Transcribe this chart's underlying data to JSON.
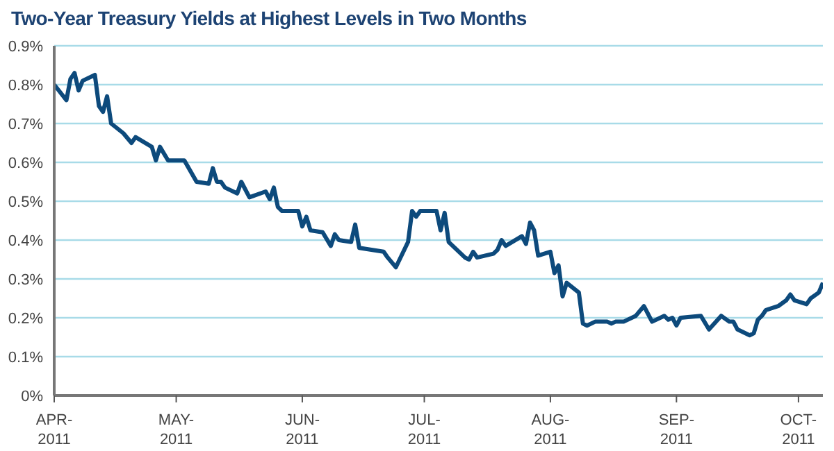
{
  "chart_data": {
    "type": "line",
    "title": "Two-Year Treasury Yields at Highest Levels in Two Months",
    "x": [
      "2011-04-01",
      "2011-04-04",
      "2011-04-05",
      "2011-04-06",
      "2011-04-07",
      "2011-04-08",
      "2011-04-11",
      "2011-04-12",
      "2011-04-13",
      "2011-04-14",
      "2011-04-15",
      "2011-04-18",
      "2011-04-20",
      "2011-04-21",
      "2011-04-25",
      "2011-04-26",
      "2011-04-27",
      "2011-04-29",
      "2011-05-03",
      "2011-05-06",
      "2011-05-09",
      "2011-05-10",
      "2011-05-11",
      "2011-05-12",
      "2011-05-13",
      "2011-05-16",
      "2011-05-17",
      "2011-05-19",
      "2011-05-23",
      "2011-05-24",
      "2011-05-25",
      "2011-05-26",
      "2011-05-27",
      "2011-05-31",
      "2011-06-01",
      "2011-06-02",
      "2011-06-03",
      "2011-06-06",
      "2011-06-08",
      "2011-06-09",
      "2011-06-10",
      "2011-06-13",
      "2011-06-14",
      "2011-06-15",
      "2011-06-21",
      "2011-06-22",
      "2011-06-24",
      "2011-06-27",
      "2011-06-28",
      "2011-06-29",
      "2011-06-30",
      "2011-07-04",
      "2011-07-05",
      "2011-07-06",
      "2011-07-07",
      "2011-07-11",
      "2011-07-12",
      "2011-07-13",
      "2011-07-14",
      "2011-07-18",
      "2011-07-19",
      "2011-07-20",
      "2011-07-21",
      "2011-07-25",
      "2011-07-26",
      "2011-07-27",
      "2011-07-28",
      "2011-07-29",
      "2011-08-01",
      "2011-08-02",
      "2011-08-03",
      "2011-08-04",
      "2011-08-05",
      "2011-08-08",
      "2011-08-09",
      "2011-08-10",
      "2011-08-12",
      "2011-08-15",
      "2011-08-16",
      "2011-08-17",
      "2011-08-19",
      "2011-08-22",
      "2011-08-24",
      "2011-08-26",
      "2011-08-29",
      "2011-08-30",
      "2011-08-31",
      "2011-09-01",
      "2011-09-02",
      "2011-09-07",
      "2011-09-09",
      "2011-09-12",
      "2011-09-14",
      "2011-09-15",
      "2011-09-16",
      "2011-09-19",
      "2011-09-20",
      "2011-09-21",
      "2011-09-22",
      "2011-09-23",
      "2011-09-26",
      "2011-09-28",
      "2011-09-29",
      "2011-09-30",
      "2011-10-03",
      "2011-10-04",
      "2011-10-06",
      "2011-10-07"
    ],
    "series": [
      {
        "color": "#0d4a7c",
        "values": [
          0.8,
          0.76,
          0.815,
          0.83,
          0.785,
          0.81,
          0.825,
          0.745,
          0.73,
          0.77,
          0.7,
          0.675,
          0.65,
          0.665,
          0.64,
          0.605,
          0.64,
          0.605,
          0.605,
          0.55,
          0.545,
          0.585,
          0.55,
          0.55,
          0.535,
          0.52,
          0.55,
          0.51,
          0.525,
          0.505,
          0.535,
          0.485,
          0.475,
          0.475,
          0.435,
          0.46,
          0.425,
          0.42,
          0.385,
          0.415,
          0.4,
          0.395,
          0.44,
          0.38,
          0.37,
          0.355,
          0.33,
          0.395,
          0.475,
          0.46,
          0.475,
          0.475,
          0.425,
          0.47,
          0.395,
          0.355,
          0.35,
          0.37,
          0.355,
          0.365,
          0.375,
          0.4,
          0.385,
          0.41,
          0.39,
          0.445,
          0.425,
          0.36,
          0.37,
          0.315,
          0.335,
          0.255,
          0.29,
          0.265,
          0.185,
          0.18,
          0.19,
          0.19,
          0.185,
          0.19,
          0.19,
          0.205,
          0.23,
          0.19,
          0.205,
          0.195,
          0.2,
          0.18,
          0.2,
          0.205,
          0.17,
          0.205,
          0.19,
          0.19,
          0.17,
          0.155,
          0.16,
          0.195,
          0.205,
          0.22,
          0.23,
          0.245,
          0.26,
          0.245,
          0.235,
          0.25,
          0.265,
          0.29
        ]
      }
    ],
    "xlim": [
      "2011-04-01",
      "2011-10-07"
    ],
    "xticks": [
      {
        "value": "2011-04-01",
        "label": "APR-\n2011"
      },
      {
        "value": "2011-05-01",
        "label": "MAY-\n2011"
      },
      {
        "value": "2011-06-01",
        "label": "JUN-\n2011"
      },
      {
        "value": "2011-07-01",
        "label": "JUL-\n2011"
      },
      {
        "value": "2011-08-01",
        "label": "AUG-\n2011"
      },
      {
        "value": "2011-09-01",
        "label": "SEP-\n2011"
      },
      {
        "value": "2011-10-01",
        "label": "OCT-\n2011"
      }
    ],
    "ylim": [
      0,
      0.9
    ],
    "yticks": [
      {
        "value": 0,
        "label": "0%"
      },
      {
        "value": 0.1,
        "label": "0.1%"
      },
      {
        "value": 0.2,
        "label": "0.2%"
      },
      {
        "value": 0.3,
        "label": "0.3%"
      },
      {
        "value": 0.4,
        "label": "0.4%"
      },
      {
        "value": 0.5,
        "label": "0.5%"
      },
      {
        "value": 0.6,
        "label": "0.6%"
      },
      {
        "value": 0.7,
        "label": "0.7%"
      },
      {
        "value": 0.8,
        "label": "0.8%"
      },
      {
        "value": 0.9,
        "label": "0.9%"
      }
    ],
    "grid": "y",
    "marker": "none",
    "line_style": "solid",
    "legend": false
  }
}
